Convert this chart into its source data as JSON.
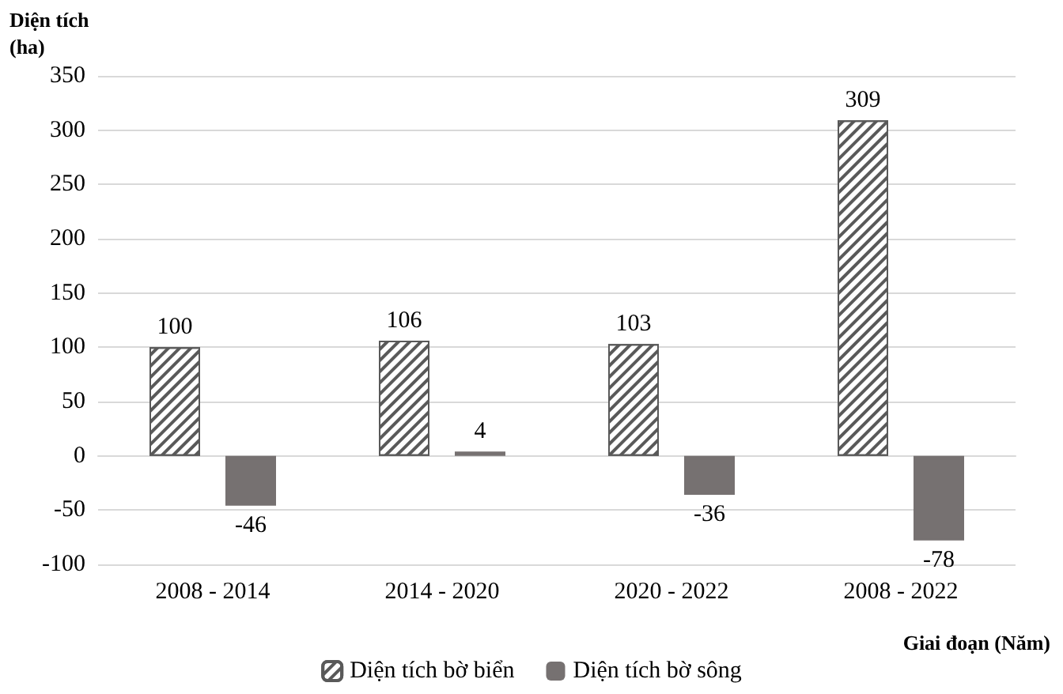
{
  "chart_data": {
    "type": "bar",
    "categories": [
      "2008 - 2014",
      "2014 - 2020",
      "2020 - 2022",
      "2008 - 2022"
    ],
    "series": [
      {
        "name": "Diện tích bờ biển",
        "color": "#595959",
        "values": [
          100,
          106,
          103,
          309
        ]
      },
      {
        "name": "Diện tích bờ sông",
        "color": "#767171",
        "values": [
          -46,
          4,
          -36,
          -78
        ]
      }
    ],
    "xlabel": "Giai đoạn (Năm)",
    "ylabel": "Diện tích (ha)",
    "ylim": [
      -100,
      350
    ],
    "yticks": [
      -100,
      -50,
      0,
      50,
      100,
      150,
      200,
      250,
      300,
      350
    ],
    "grid": "y",
    "legend": "bottom",
    "data_labels": true
  }
}
